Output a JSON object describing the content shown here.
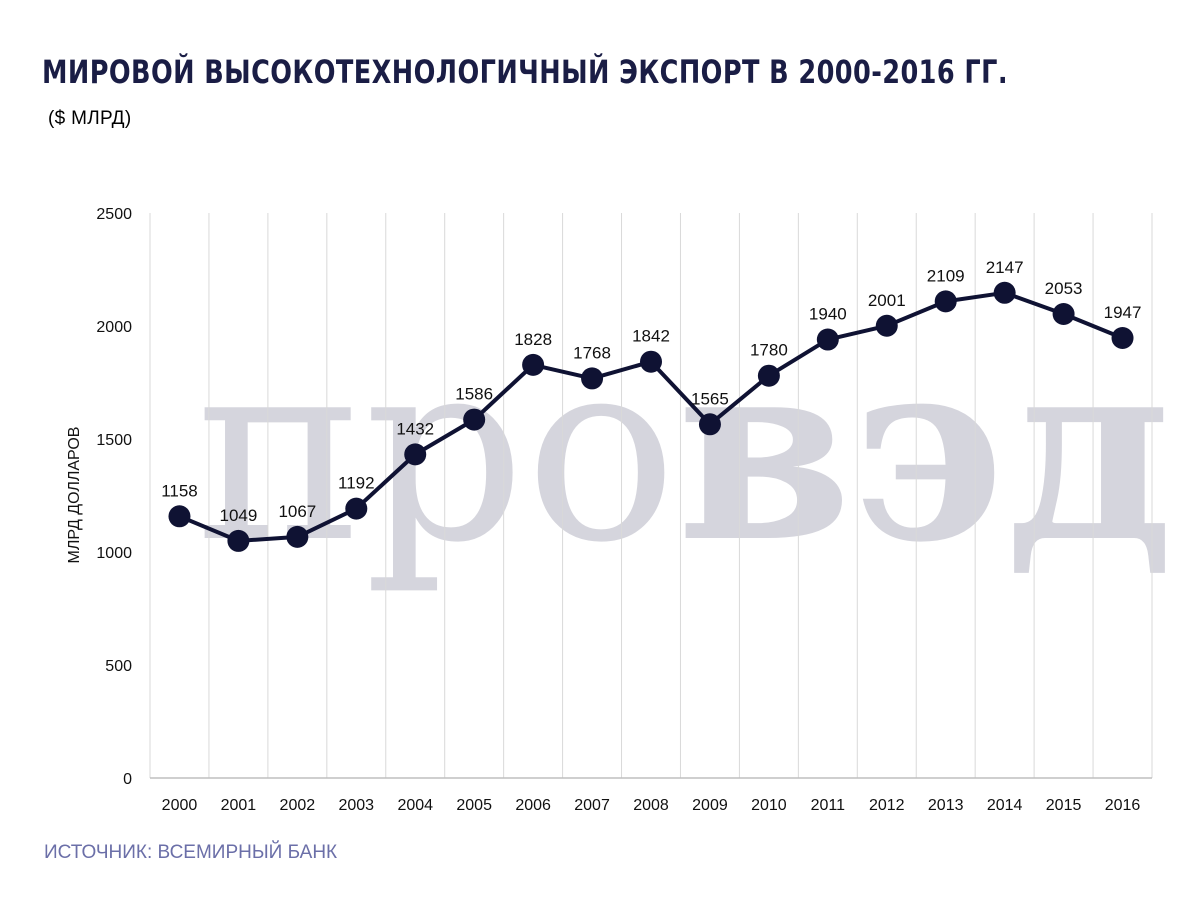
{
  "header": {
    "title": "МИРОВОЙ ВЫСОКОТЕХНОЛОГИЧНЫЙ ЭКСПОРТ В 2000-2016 ГГ.",
    "subtitle": "($ МЛРД)"
  },
  "footer": {
    "source": "ИСТОЧНИК: ВСЕМИРНЫЙ БАНК"
  },
  "watermark": {
    "text_light": "про",
    "text_bold": "вэд"
  },
  "colors": {
    "title": "#1a1d45",
    "source": "#6b6fa8",
    "line": "#0f1233",
    "grid": "#d9d9d9",
    "axis": "#bfbfbf"
  },
  "chart_data": {
    "type": "line",
    "categories": [
      "2000",
      "2001",
      "2002",
      "2003",
      "2004",
      "2005",
      "2006",
      "2007",
      "2008",
      "2009",
      "2010",
      "2011",
      "2012",
      "2013",
      "2014",
      "2015",
      "2016"
    ],
    "series": [
      {
        "values": [
          1158,
          1049,
          1067,
          1192,
          1432,
          1586,
          1828,
          1768,
          1842,
          1565,
          1780,
          1940,
          2001,
          2109,
          2147,
          2053,
          1947
        ]
      }
    ],
    "ylabel": "МЛРД ДОЛЛАРОВ",
    "ylim": [
      0,
      2500
    ],
    "yticks": [
      0,
      500,
      1000,
      1500,
      2000,
      2500
    ],
    "grid": "vertical",
    "data_labels": true,
    "markers": "circle"
  }
}
